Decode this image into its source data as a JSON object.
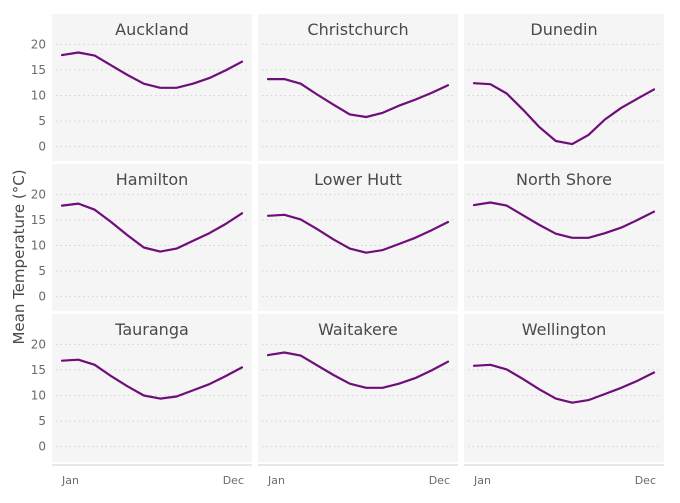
{
  "chart_data": {
    "type": "line",
    "layout": "small-multiples 3x3",
    "ylabel": "Mean Temperature (°C)",
    "ylim": [
      -3,
      23
    ],
    "yticks": [
      0,
      5,
      10,
      15,
      20
    ],
    "x": [
      1,
      2,
      3,
      4,
      5,
      6,
      7,
      8,
      9,
      10,
      11,
      12
    ],
    "xtick_labels": [
      "Jan",
      "Dec"
    ],
    "line_color": "#6f0d7a",
    "panels": [
      {
        "name": "Auckland",
        "values": [
          17.9,
          18.4,
          17.8,
          15.9,
          14.0,
          12.3,
          11.5,
          11.5,
          12.3,
          13.4,
          14.9,
          16.6
        ]
      },
      {
        "name": "Christchurch",
        "values": [
          13.2,
          13.2,
          12.3,
          10.2,
          8.2,
          6.3,
          5.8,
          6.6,
          8.0,
          9.2,
          10.5,
          12.0
        ]
      },
      {
        "name": "Dunedin",
        "values": [
          12.4,
          12.2,
          10.4,
          7.2,
          3.8,
          1.1,
          0.5,
          2.3,
          5.3,
          7.6,
          9.4,
          11.2
        ]
      },
      {
        "name": "Hamilton",
        "values": [
          17.8,
          18.2,
          17.0,
          14.6,
          12.0,
          9.6,
          8.8,
          9.4,
          10.9,
          12.4,
          14.2,
          16.3
        ]
      },
      {
        "name": "Lower Hutt",
        "values": [
          15.8,
          16.0,
          15.1,
          13.2,
          11.2,
          9.4,
          8.6,
          9.1,
          10.3,
          11.5,
          13.0,
          14.6
        ]
      },
      {
        "name": "North Shore",
        "values": [
          17.9,
          18.4,
          17.8,
          15.9,
          14.0,
          12.3,
          11.5,
          11.5,
          12.4,
          13.5,
          15.0,
          16.6
        ]
      },
      {
        "name": "Tauranga",
        "values": [
          16.8,
          17.0,
          16.0,
          13.8,
          11.8,
          10.0,
          9.4,
          9.8,
          11.0,
          12.2,
          13.8,
          15.5
        ]
      },
      {
        "name": "Waitakere",
        "values": [
          17.9,
          18.4,
          17.8,
          15.9,
          14.0,
          12.3,
          11.5,
          11.5,
          12.3,
          13.4,
          14.9,
          16.6
        ]
      },
      {
        "name": "Wellington",
        "values": [
          15.8,
          16.0,
          15.1,
          13.2,
          11.2,
          9.4,
          8.6,
          9.1,
          10.3,
          11.5,
          12.9,
          14.5
        ]
      }
    ]
  }
}
